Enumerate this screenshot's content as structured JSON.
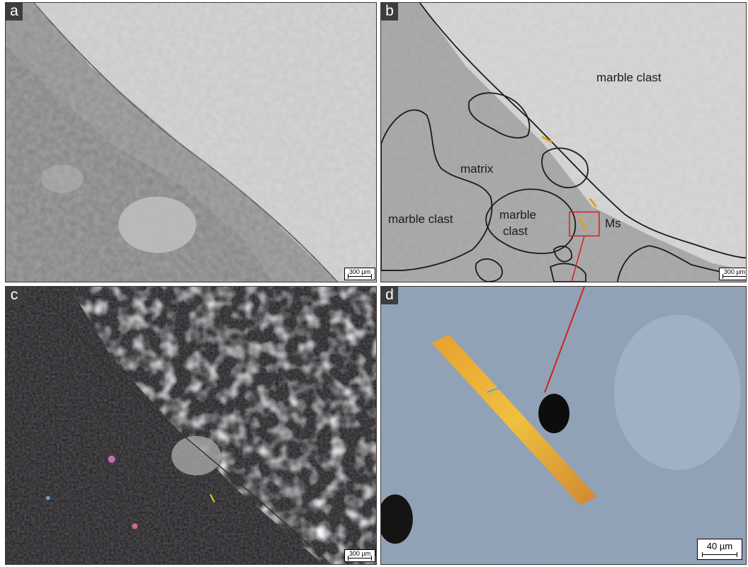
{
  "panels": {
    "a": {
      "letter": "a",
      "scale": "300 µm"
    },
    "b": {
      "letter": "b",
      "scale": "300 µm",
      "labels": {
        "marble_clast_top": "marble clast",
        "matrix": "matrix",
        "marble_clast_left": "marble clast",
        "marble_clast_center_l1": "marble",
        "marble_clast_center_l2": "clast",
        "ms": "Ms"
      }
    },
    "c": {
      "letter": "c",
      "scale": "300 µm"
    },
    "d": {
      "letter": "d",
      "scale": "40 µm"
    }
  },
  "colors": {
    "ppl_light": "#d8d8d8",
    "ppl_dark": "#8a8a8a",
    "xpl_dark": "#1e1e1e",
    "outline": "#1a1a1a",
    "callout_red": "#d32020",
    "muscovite": "#e0a020"
  }
}
